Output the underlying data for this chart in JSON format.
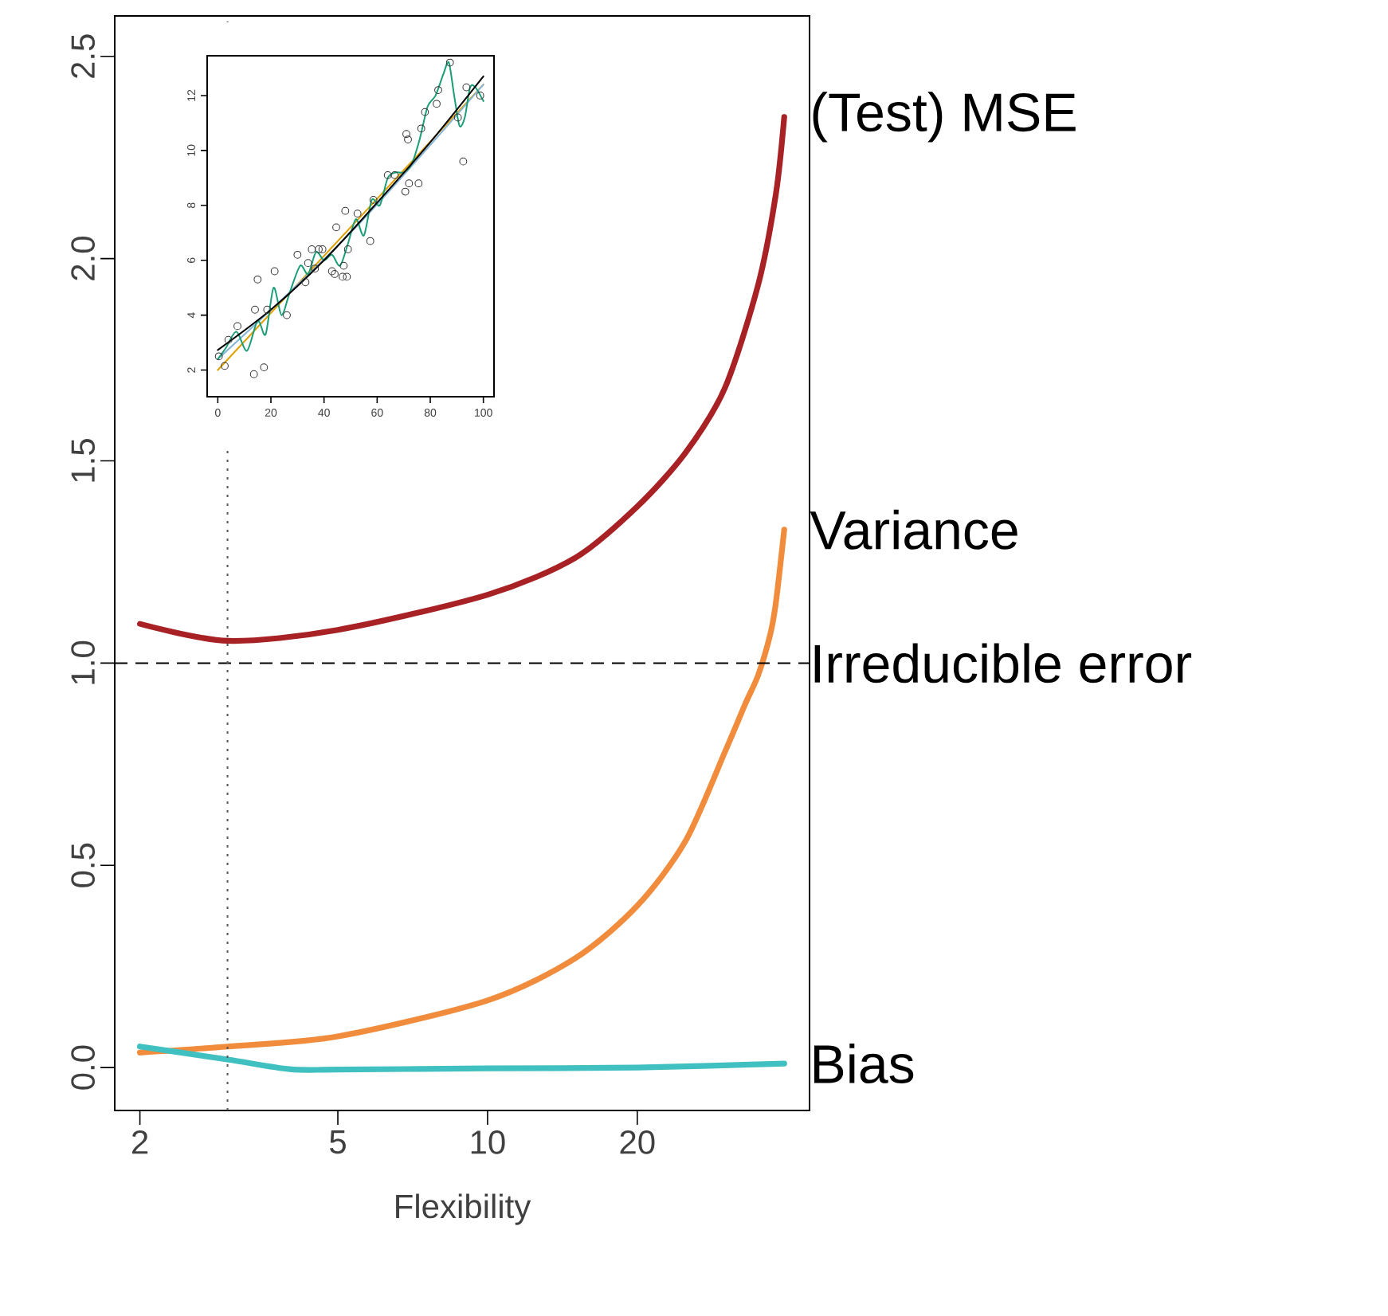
{
  "chart_data": [
    {
      "type": "line",
      "xlabel": "Flexibility",
      "log": "x",
      "grid": false,
      "xlim": [
        1.78,
        44.4
      ],
      "xticks": [
        2,
        5,
        10,
        20
      ],
      "ylim": [
        -0.106,
        2.6
      ],
      "yticks": [
        {
          "value": 0,
          "label": "0.0"
        },
        0.5,
        {
          "value": 1,
          "label": "1.0"
        },
        1.5,
        {
          "value": 2,
          "label": "2.0"
        },
        2.5
      ],
      "series": [
        {
          "name": "(Test) MSE",
          "color": "#a82124",
          "x": [
            2,
            3,
            5,
            10,
            15,
            20,
            25,
            30,
            35,
            38,
            39.5
          ],
          "values": [
            1.097,
            1.055,
            1.082,
            1.169,
            1.26,
            1.387,
            1.52,
            1.68,
            1.935,
            2.16,
            2.35
          ]
        },
        {
          "name": "Variance",
          "color": "#f08c3c",
          "x": [
            2,
            3,
            5,
            10,
            15,
            20,
            25,
            30,
            33,
            35,
            37,
            38,
            39.5
          ],
          "values": [
            0.037,
            0.052,
            0.077,
            0.166,
            0.27,
            0.4,
            0.56,
            0.78,
            0.9,
            0.97,
            1.07,
            1.15,
            1.33
          ]
        },
        {
          "name": "Bias",
          "color": "#40c0c0",
          "x": [
            2,
            3,
            4,
            5,
            10,
            20,
            39.5
          ],
          "values": [
            0.052,
            0.02,
            -0.004,
            -0.005,
            -0.002,
            0.0,
            0.01
          ]
        }
      ],
      "ref_lines": [
        {
          "axis": "y",
          "value": 1.0,
          "label": "Irreducible error",
          "line_style": "dashed",
          "color": "#000000"
        },
        {
          "axis": "x",
          "value": 3,
          "line_style": "dotted",
          "color": "#555555"
        }
      ]
    },
    {
      "type": "scatter",
      "grid": false,
      "xlim": [
        -4,
        104
      ],
      "xticks": [
        0,
        20,
        40,
        60,
        80,
        100
      ],
      "ylim": [
        1.03,
        13.45
      ],
      "yticks": [
        2,
        4,
        6,
        8,
        10,
        12
      ],
      "series": [
        {
          "type": "scatter",
          "marker": "circle",
          "color": "#333333",
          "x": [
            0.4,
            2.6,
            4,
            7.4,
            14,
            15,
            13.6,
            17.4,
            18.6,
            21.4,
            26,
            30,
            33,
            34,
            35.4,
            38,
            39.4,
            36.6,
            43,
            44,
            44.6,
            47.4,
            47,
            48.6,
            48,
            49,
            52.6,
            57.4,
            58.6,
            64,
            66.6,
            70.6,
            71,
            71.6,
            72,
            75.6,
            76.6,
            78,
            82.4,
            83,
            87.4,
            90.4,
            92.4,
            93.6,
            98.8
          ],
          "values": [
            2.5,
            2.15,
            3.1,
            3.6,
            4.2,
            5.3,
            1.85,
            2.1,
            4.2,
            5.6,
            4.0,
            6.2,
            5.2,
            5.9,
            6.4,
            6.4,
            6.4,
            5.7,
            5.6,
            5.5,
            7.2,
            5.8,
            5.4,
            5.4,
            7.8,
            6.4,
            7.7,
            6.7,
            8.2,
            9.1,
            9.1,
            8.5,
            10.6,
            10.4,
            8.8,
            8.8,
            10.8,
            11.4,
            11.7,
            12.2,
            13.2,
            11.2,
            9.6,
            12.3,
            12.0
          ]
        },
        {
          "type": "line",
          "color": "#e0a000",
          "x": [
            0,
            100
          ],
          "values": [
            2.0,
            12.4
          ]
        },
        {
          "type": "line",
          "color": "#87b5d6",
          "x": [
            0,
            50,
            100
          ],
          "values": [
            2.4,
            7.0,
            12.4
          ]
        },
        {
          "type": "line",
          "color": "#1a9e77",
          "x": [
            0,
            3,
            7,
            11,
            15,
            18,
            21,
            24,
            27,
            31,
            34,
            37,
            40,
            43,
            46,
            49,
            52,
            55,
            58,
            61,
            64,
            67,
            70,
            73,
            76,
            79,
            82,
            85,
            87,
            89,
            91,
            93,
            95,
            97,
            100
          ],
          "values": [
            2.4,
            2.8,
            3.4,
            2.7,
            3.8,
            3.3,
            5.0,
            4.0,
            4.8,
            5.8,
            5.5,
            6.3,
            6.0,
            6.2,
            5.8,
            6.6,
            7.5,
            6.9,
            8.2,
            8.0,
            9.0,
            9.2,
            9.2,
            9.5,
            10.4,
            11.6,
            12.0,
            12.8,
            13.2,
            12.0,
            10.9,
            11.2,
            12.3,
            12.3,
            11.8
          ]
        },
        {
          "type": "line",
          "color": "#000000",
          "x": [
            0,
            20,
            40,
            60,
            80,
            100
          ],
          "values": [
            2.73,
            4.2,
            6.0,
            8.1,
            10.3,
            12.7
          ]
        }
      ]
    }
  ]
}
